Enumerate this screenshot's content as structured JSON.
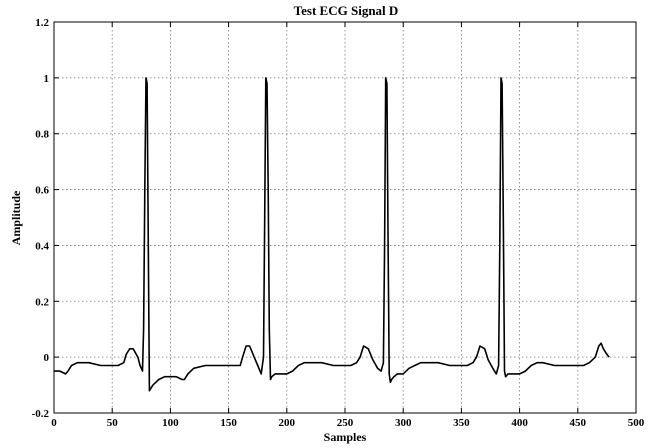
{
  "chart_data": {
    "type": "line",
    "title": "Test ECG Signal D",
    "xlabel": "Samples",
    "ylabel": "Amplitude",
    "xlim": [
      0,
      500
    ],
    "ylim": [
      -0.2,
      1.2
    ],
    "grid": true,
    "x_ticks": [
      0,
      50,
      100,
      150,
      200,
      250,
      300,
      350,
      400,
      450,
      500
    ],
    "y_ticks": [
      -0.2,
      0,
      0.2,
      0.4,
      0.6,
      0.8,
      1,
      1.2
    ],
    "series": [
      {
        "color": "#000000",
        "x": [
          0,
          5,
          10,
          12,
          15,
          20,
          30,
          40,
          50,
          55,
          60,
          62,
          65,
          68,
          72,
          74,
          76,
          77,
          78,
          79,
          80,
          81,
          82,
          85,
          90,
          95,
          100,
          105,
          110,
          112,
          115,
          120,
          130,
          140,
          150,
          155,
          160,
          162,
          165,
          168,
          172,
          176,
          178,
          180,
          181,
          182,
          183,
          184,
          185,
          186,
          187,
          190,
          195,
          200,
          205,
          210,
          215,
          218,
          220,
          230,
          240,
          250,
          255,
          260,
          263,
          266,
          270,
          274,
          278,
          281,
          283,
          284,
          285,
          286,
          287,
          288,
          289,
          290,
          292,
          295,
          300,
          305,
          310,
          315,
          320,
          330,
          340,
          350,
          355,
          360,
          363,
          366,
          370,
          373,
          377,
          380,
          382,
          383,
          384,
          385,
          386,
          387,
          388,
          390,
          395,
          400,
          405,
          410,
          415,
          420,
          430,
          440,
          450,
          455,
          460,
          465,
          468,
          470,
          472,
          475,
          477
        ],
        "y": [
          -0.05,
          -0.05,
          -0.06,
          -0.05,
          -0.03,
          -0.02,
          -0.02,
          -0.03,
          -0.03,
          -0.03,
          -0.02,
          0.01,
          0.03,
          0.03,
          0.0,
          -0.03,
          -0.05,
          0.1,
          0.6,
          1.0,
          0.98,
          0.4,
          -0.12,
          -0.1,
          -0.08,
          -0.07,
          -0.07,
          -0.07,
          -0.08,
          -0.08,
          -0.06,
          -0.04,
          -0.03,
          -0.03,
          -0.03,
          -0.03,
          -0.03,
          0.0,
          0.04,
          0.04,
          0.0,
          -0.04,
          -0.06,
          0.0,
          0.5,
          1.0,
          0.98,
          0.6,
          0.1,
          -0.08,
          -0.07,
          -0.06,
          -0.06,
          -0.06,
          -0.05,
          -0.03,
          -0.02,
          -0.02,
          -0.02,
          -0.02,
          -0.03,
          -0.03,
          -0.03,
          -0.02,
          0.0,
          0.04,
          0.03,
          -0.01,
          -0.04,
          -0.05,
          -0.02,
          0.4,
          1.0,
          0.98,
          0.4,
          -0.06,
          -0.09,
          -0.08,
          -0.07,
          -0.06,
          -0.06,
          -0.04,
          -0.03,
          -0.02,
          -0.02,
          -0.02,
          -0.03,
          -0.03,
          -0.03,
          -0.02,
          0.0,
          0.04,
          0.03,
          -0.01,
          -0.04,
          -0.06,
          -0.03,
          0.4,
          1.0,
          0.98,
          0.5,
          -0.05,
          -0.07,
          -0.06,
          -0.06,
          -0.06,
          -0.05,
          -0.03,
          -0.02,
          -0.02,
          -0.03,
          -0.03,
          -0.03,
          -0.03,
          -0.02,
          0.0,
          0.04,
          0.05,
          0.03,
          0.01,
          0.0
        ]
      }
    ]
  }
}
